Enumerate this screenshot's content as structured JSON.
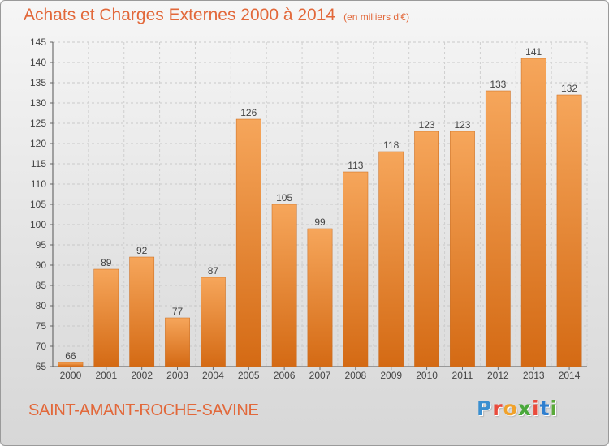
{
  "title": "Achats et Charges Externes 2000 à 2014",
  "unit_note": "(en milliers d'€)",
  "commune": "SAINT-AMANT-ROCHE-SAVINE",
  "logo": {
    "letters": [
      "P",
      "r",
      "o",
      "x",
      "i",
      "t",
      "i"
    ],
    "colors": [
      "#3a8fd0",
      "#e94b3c",
      "#f0a22b",
      "#4aa83b",
      "#e94b3c",
      "#2f7fcf",
      "#5aaa3a"
    ]
  },
  "colors": {
    "accent": "#e2683a",
    "bar_top": "#f6a65b",
    "bar_bottom": "#d46a14"
  },
  "chart_data": {
    "type": "bar",
    "categories": [
      "2000",
      "2001",
      "2002",
      "2003",
      "2004",
      "2005",
      "2006",
      "2007",
      "2008",
      "2009",
      "2010",
      "2011",
      "2012",
      "2013",
      "2014"
    ],
    "values": [
      66,
      89,
      92,
      77,
      87,
      126,
      105,
      99,
      113,
      118,
      123,
      123,
      133,
      141,
      132
    ],
    "value_labels": [
      "66",
      "89",
      "92",
      "77",
      "87",
      "126",
      "105",
      "99",
      "113",
      "118",
      "123",
      "123",
      "133",
      "141",
      "132"
    ],
    "ylim": [
      65,
      145
    ],
    "yticks": [
      "65",
      "70",
      "75",
      "80",
      "85",
      "90",
      "95",
      "100",
      "105",
      "110",
      "115",
      "120",
      "125",
      "130",
      "135",
      "140",
      "145"
    ],
    "grid": true,
    "legend": "none"
  }
}
